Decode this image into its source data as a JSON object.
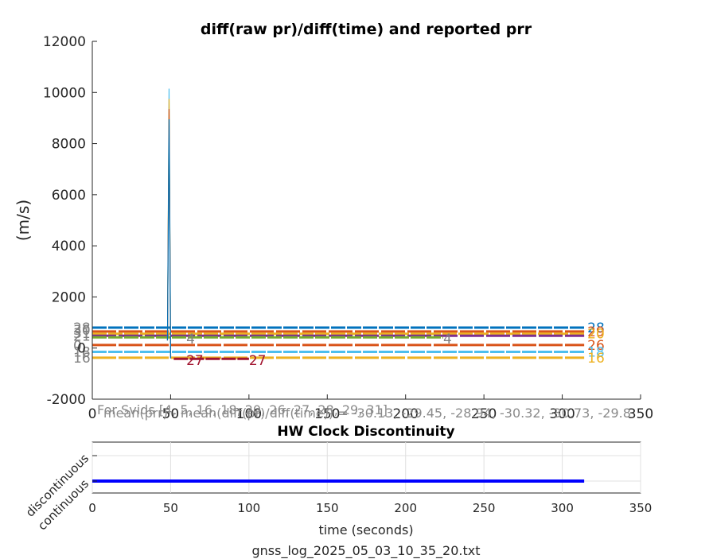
{
  "colors": {
    "series": [
      "#0072bd",
      "#d95319",
      "#edb120",
      "#7e2f8e",
      "#77ac30",
      "#4dbeee",
      "#a2142f",
      "#808080"
    ],
    "discontinuity": "#0000ff"
  },
  "chart_data": [
    {
      "type": "line",
      "title": "diff(raw pr)/diff(time) and reported prr",
      "xlabel": "",
      "ylabel": "(m/s)",
      "xlim": [
        0,
        350
      ],
      "ylim": [
        -2000,
        12000
      ],
      "xticks": [
        "0",
        "50",
        "100",
        "150",
        "200",
        "250",
        "300",
        "350"
      ],
      "yticks": [
        "-2000",
        "0",
        "2000",
        "4000",
        "6000",
        "8000",
        "10000",
        "12000"
      ],
      "spike": {
        "x": 49,
        "y": 10150
      },
      "series": [
        {
          "label": "28",
          "y": 800,
          "x": [
            0,
            314
          ],
          "color": "#0072bd",
          "label_left": true,
          "label_right": true
        },
        {
          "label": "29",
          "y": 650,
          "x": [
            0,
            314
          ],
          "color": "#d95319",
          "label_left": true,
          "label_right": true
        },
        {
          "label": "20",
          "y": 560,
          "x": [
            0,
            314
          ],
          "color": "#edb120",
          "label_left": true,
          "label_right": true
        },
        {
          "label": "31",
          "y": 480,
          "x": [
            0,
            314
          ],
          "color": "#7e2f8e",
          "label_left": true,
          "label_right": false
        },
        {
          "label": "4",
          "y": 420,
          "x": [
            0,
            224
          ],
          "color": "#77ac30",
          "label_left": false,
          "label_right": false,
          "mid_labels": [
            60,
            224
          ]
        },
        {
          "label": "26",
          "y": 120,
          "x": [
            0,
            314
          ],
          "color": "#d95319",
          "label_left": false,
          "label_right": true
        },
        {
          "label": "18",
          "y": -150,
          "x": [
            0,
            314
          ],
          "color": "#4dbeee",
          "label_left": true,
          "label_right": true
        },
        {
          "label": "16",
          "y": -380,
          "x": [
            0,
            314
          ],
          "color": "#edb120",
          "label_left": true,
          "label_right": true
        },
        {
          "label": "27",
          "y": -420,
          "x": [
            52,
            100
          ],
          "color": "#a2142f",
          "label_left": false,
          "label_right": false,
          "mid_labels": [
            60,
            100
          ]
        }
      ],
      "left_labels": [
        "28",
        "30",
        "31",
        "21",
        "0",
        "18",
        "16"
      ],
      "right_labels": [
        "28",
        "29",
        "20",
        "18",
        "16"
      ],
      "mid_labels_text": [
        "4",
        "4",
        "27",
        "27"
      ]
    },
    {
      "type": "line",
      "title": "HW Clock Discontinuity",
      "xlabel": "time (seconds)",
      "xlim": [
        0,
        350
      ],
      "xticks": [
        "0",
        "50",
        "100",
        "150",
        "200",
        "250",
        "300",
        "350"
      ],
      "yticks": [
        "continuous",
        "discontinuous"
      ],
      "values": {
        "x": [
          0,
          314
        ],
        "y": "continuous"
      }
    }
  ],
  "notes": {
    "svids": "For Svids [4, 5, 16, 18, 20, 26, 27, 28, 29, 31]",
    "mean": "mean(prr) - mean(diff(pr)/diff(time)) = -30.13, -29.45, -28.94, -30.32, -30.73, -29.8"
  },
  "filename": "gnss_log_2025_05_03_10_35_20.txt"
}
